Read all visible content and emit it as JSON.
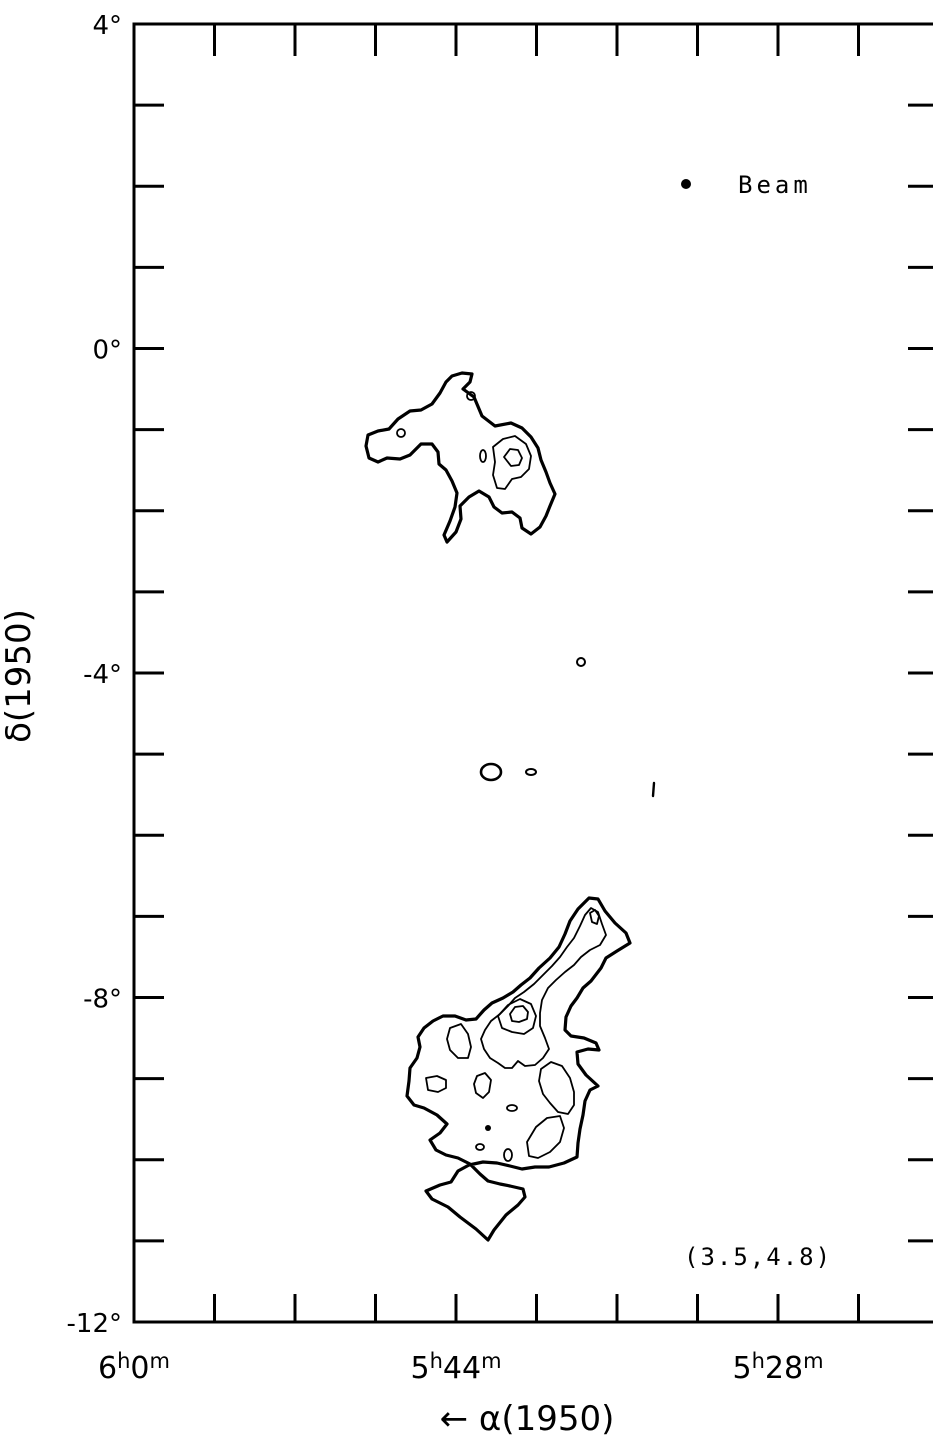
{
  "chart_data": {
    "type": "contour",
    "x_axis": {
      "label": "← α(1950)",
      "tick_labels": [
        {
          "text": "6",
          "sup": "h",
          "text2": "0",
          "sup2": "m",
          "ra_min": 360
        },
        {
          "text": "5",
          "sup": "h",
          "text2": "44",
          "sup2": "m",
          "ra_min": 344
        },
        {
          "text": "5",
          "sup": "h",
          "text2": "28",
          "sup2": "m",
          "ra_min": 328
        }
      ],
      "range_ra_minutes": [
        360,
        322
      ],
      "minor_tick_step_min": 4
    },
    "y_axis": {
      "label": "δ(1950)",
      "tick_labels": [
        "4°",
        "0°",
        "-4°",
        "-8°",
        "-12°"
      ],
      "tick_values": [
        4,
        0,
        -4,
        -8,
        -12
      ],
      "range_deg": [
        -12,
        4
      ],
      "minor_tick_step_deg": 1
    },
    "annotations": {
      "beam_label": "Beam",
      "contour_levels_label": "(3.5,4.8)"
    },
    "contours": {
      "levels": [
        3.5,
        4.8
      ],
      "regions": [
        "north cloud near 5h42m, -1.5°",
        "south cloud near 5h42m, -9°"
      ]
    }
  }
}
